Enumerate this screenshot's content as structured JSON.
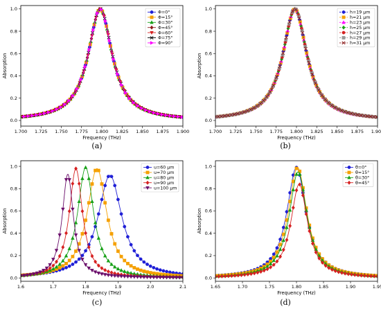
{
  "chart_data": [
    {
      "type": "line",
      "panel_label": "(a)",
      "xlabel": "Frequency (THz)",
      "ylabel": "Absorption",
      "xlim": [
        1.7,
        1.9
      ],
      "ylim": [
        -0.05,
        1.03
      ],
      "xticks": [
        "1.700",
        "1.725",
        "1.750",
        "1.775",
        "1.800",
        "1.825",
        "1.850",
        "1.875",
        "1.900"
      ],
      "yticks": [
        "0.0",
        "0.2",
        "0.4",
        "0.6",
        "0.8",
        "1.0"
      ],
      "legend_position": "top-right",
      "line_style": "solid",
      "curve": {
        "peak": 1.798,
        "hwhm": 0.018,
        "amp": 1.0
      },
      "series": [
        {
          "name": "Φ=0°",
          "color": "#1f1fd6",
          "marker": "circle"
        },
        {
          "name": "Φ=15°",
          "color": "#f5a000",
          "marker": "square"
        },
        {
          "name": "Φ=30°",
          "color": "#16a016",
          "marker": "triangle-up"
        },
        {
          "name": "Φ=45°",
          "color": "#8b1a1a",
          "marker": "diamond"
        },
        {
          "name": "Φ=60°",
          "color": "#d62020",
          "marker": "triangle-down"
        },
        {
          "name": "Φ=75°",
          "color": "#000000",
          "marker": "x"
        },
        {
          "name": "Φ=90°",
          "color": "#ff00ff",
          "marker": "triangle-right"
        }
      ]
    },
    {
      "type": "line",
      "panel_label": "(b)",
      "xlabel": "Frequency (THz)",
      "ylabel": "Absorption",
      "xlim": [
        1.7,
        1.9
      ],
      "ylim": [
        -0.05,
        1.03
      ],
      "xticks": [
        "1.700",
        "1.725",
        "1.750",
        "1.775",
        "1.800",
        "1.825",
        "1.850",
        "1.875",
        "1.900"
      ],
      "yticks": [
        "0.0",
        "0.2",
        "0.4",
        "0.6",
        "0.8",
        "1.0"
      ],
      "legend_position": "top-right",
      "line_style": "dashed",
      "curve": {
        "peak": 1.798,
        "hwhm": 0.018,
        "amp": 1.0
      },
      "series": [
        {
          "name": "h=19 μm",
          "color": "#1f1fd6",
          "marker": "circle"
        },
        {
          "name": "h=21 μm",
          "color": "#f5a000",
          "marker": "square"
        },
        {
          "name": "h=23 μm",
          "color": "#ff00ff",
          "marker": "triangle-up"
        },
        {
          "name": "h=25 μm",
          "color": "#16a016",
          "marker": "diamond"
        },
        {
          "name": "h=27 μm",
          "color": "#d62020",
          "marker": "circle"
        },
        {
          "name": "h=29 μm",
          "color": "#999999",
          "marker": "square"
        },
        {
          "name": "h=31 μm",
          "color": "#8b1a1a",
          "marker": "x"
        }
      ]
    },
    {
      "type": "line",
      "panel_label": "(c)",
      "xlabel": "Frequency (THz)",
      "ylabel": "Absorption",
      "xlim": [
        1.6,
        2.1
      ],
      "ylim": [
        -0.03,
        1.05
      ],
      "xticks": [
        "1.6",
        "1.7",
        "1.8",
        "1.9",
        "2.0",
        "2.1"
      ],
      "yticks": [
        "0.0",
        "0.2",
        "0.4",
        "0.6",
        "0.8",
        "1.0"
      ],
      "legend_position": "top-left",
      "line_style": "solid",
      "series": [
        {
          "name": "u=60 μm",
          "color": "#1f1fd6",
          "marker": "circle",
          "peak": 1.875,
          "hwhm": 0.045,
          "amp": 0.92
        },
        {
          "name": "u=70 μm",
          "color": "#f5a000",
          "marker": "square",
          "peak": 1.835,
          "hwhm": 0.037,
          "amp": 0.98
        },
        {
          "name": "u=80 μm",
          "color": "#16a016",
          "marker": "triangle-up",
          "peak": 1.8,
          "hwhm": 0.03,
          "amp": 0.99
        },
        {
          "name": "u=90 μm",
          "color": "#d62020",
          "marker": "diamond",
          "peak": 1.77,
          "hwhm": 0.025,
          "amp": 0.98
        },
        {
          "name": "u=100 μm",
          "color": "#6a0d6a",
          "marker": "triangle-down",
          "peak": 1.745,
          "hwhm": 0.021,
          "amp": 0.93
        }
      ]
    },
    {
      "type": "line",
      "panel_label": "(d)",
      "xlabel": "Frequency (THz)",
      "ylabel": "Absorption",
      "xlim": [
        1.65,
        1.95
      ],
      "ylim": [
        -0.03,
        1.05
      ],
      "xticks": [
        "1.65",
        "1.70",
        "1.75",
        "1.80",
        "1.85",
        "1.90",
        "1.95"
      ],
      "yticks": [
        "0.0",
        "0.2",
        "0.4",
        "0.6",
        "0.8",
        "1.0"
      ],
      "legend_position": "top-left",
      "line_style": "solid",
      "series": [
        {
          "name": "θ=0°",
          "color": "#1f1fd6",
          "marker": "circle",
          "peak": 1.8,
          "hwhm": 0.022,
          "amp": 0.99
        },
        {
          "name": "θ=15°",
          "color": "#f5a000",
          "marker": "square",
          "peak": 1.802,
          "hwhm": 0.021,
          "amp": 0.99
        },
        {
          "name": "θ=30°",
          "color": "#16a016",
          "marker": "triangle-up",
          "peak": 1.803,
          "hwhm": 0.02,
          "amp": 0.95
        },
        {
          "name": "θ=45°",
          "color": "#d62020",
          "marker": "diamond",
          "peak": 1.805,
          "hwhm": 0.019,
          "amp": 0.84
        }
      ]
    }
  ]
}
